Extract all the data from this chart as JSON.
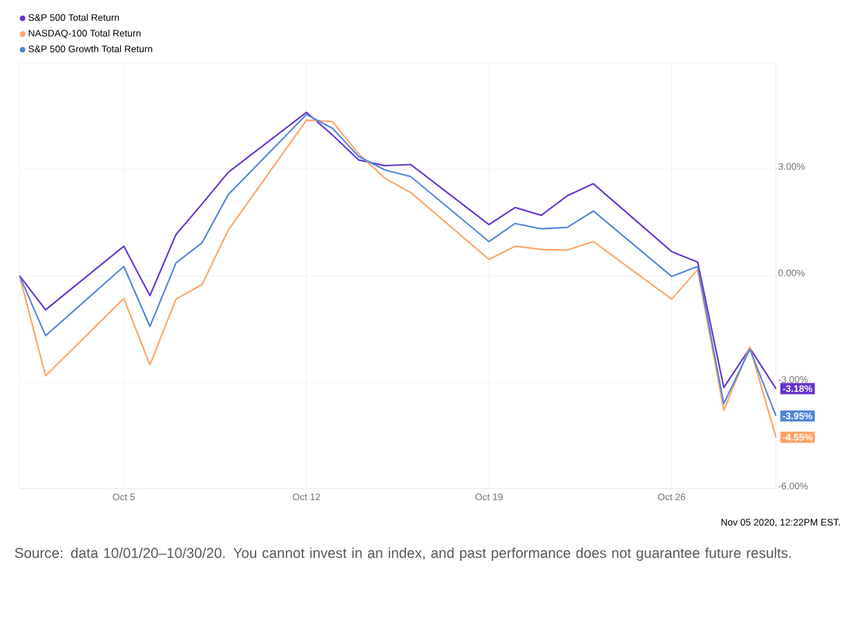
{
  "chart_data": {
    "type": "line",
    "x": [
      "2020-10-01",
      "2020-10-02",
      "2020-10-05",
      "2020-10-06",
      "2020-10-07",
      "2020-10-08",
      "2020-10-09",
      "2020-10-12",
      "2020-10-13",
      "2020-10-14",
      "2020-10-15",
      "2020-10-16",
      "2020-10-19",
      "2020-10-20",
      "2020-10-21",
      "2020-10-22",
      "2020-10-23",
      "2020-10-26",
      "2020-10-27",
      "2020-10-28",
      "2020-10-29",
      "2020-10-30"
    ],
    "series": [
      {
        "name": "S&P 500 Total Return",
        "color": "#6633cc",
        "values": [
          0,
          -0.96,
          0.83,
          -0.56,
          1.16,
          2.02,
          2.91,
          4.6,
          3.96,
          3.26,
          3.1,
          3.13,
          1.44,
          1.92,
          1.7,
          2.25,
          2.59,
          0.68,
          0.38,
          -3.15,
          -2.04,
          -3.18
        ],
        "value_labels": [
          null,
          null,
          null,
          null,
          null,
          null,
          null,
          null,
          null,
          null,
          null,
          null,
          null,
          null,
          null,
          null,
          null,
          null,
          null,
          null,
          null,
          "-3.18%"
        ]
      },
      {
        "name": "NASDAQ-100 Total Return",
        "color": "#ffa366",
        "values": [
          0,
          -2.82,
          -0.64,
          -2.51,
          -0.66,
          -0.25,
          1.28,
          4.38,
          4.34,
          3.43,
          2.75,
          2.34,
          0.46,
          0.83,
          0.74,
          0.72,
          0.96,
          -0.66,
          0.17,
          -3.79,
          -2.0,
          -4.55
        ],
        "value_labels": [
          null,
          null,
          null,
          null,
          null,
          null,
          null,
          null,
          null,
          null,
          null,
          null,
          null,
          null,
          null,
          null,
          null,
          null,
          null,
          null,
          null,
          "-4.55%"
        ]
      },
      {
        "name": "S&P 500 Growth Total Return",
        "color": "#4f86d9",
        "values": [
          0,
          -1.69,
          0.26,
          -1.43,
          0.36,
          0.93,
          2.28,
          4.54,
          4.15,
          3.36,
          2.98,
          2.79,
          0.96,
          1.47,
          1.32,
          1.36,
          1.82,
          -0.02,
          0.26,
          -3.6,
          -2.07,
          -3.95
        ],
        "value_labels": [
          null,
          null,
          null,
          null,
          null,
          null,
          null,
          null,
          null,
          null,
          null,
          null,
          null,
          null,
          null,
          null,
          null,
          null,
          null,
          null,
          null,
          "-3.95%"
        ]
      }
    ],
    "xlim": [
      "2020-10-01",
      "2020-10-30"
    ],
    "xticks": [
      {
        "value": "2020-10-05",
        "label": "Oct 5"
      },
      {
        "value": "2020-10-12",
        "label": "Oct 12"
      },
      {
        "value": "2020-10-19",
        "label": "Oct 19"
      },
      {
        "value": "2020-10-26",
        "label": "Oct 26"
      }
    ],
    "ylim": [
      -6,
      6
    ],
    "yticks": [
      {
        "value": -6,
        "label": "-6.00%"
      },
      {
        "value": -3,
        "label": "-3.00%"
      },
      {
        "value": 0,
        "label": "0.00%"
      },
      {
        "value": 3,
        "label": "3.00%"
      }
    ],
    "grid": true,
    "legend": "top left",
    "marker": "none",
    "line_style": "solid",
    "annotations": [
      "Nov 05 2020, 12:22PM EST.",
      "Source: data 10/01/20–10/30/20. You cannot invest in an index, and past performance does not guarantee future results."
    ]
  }
}
